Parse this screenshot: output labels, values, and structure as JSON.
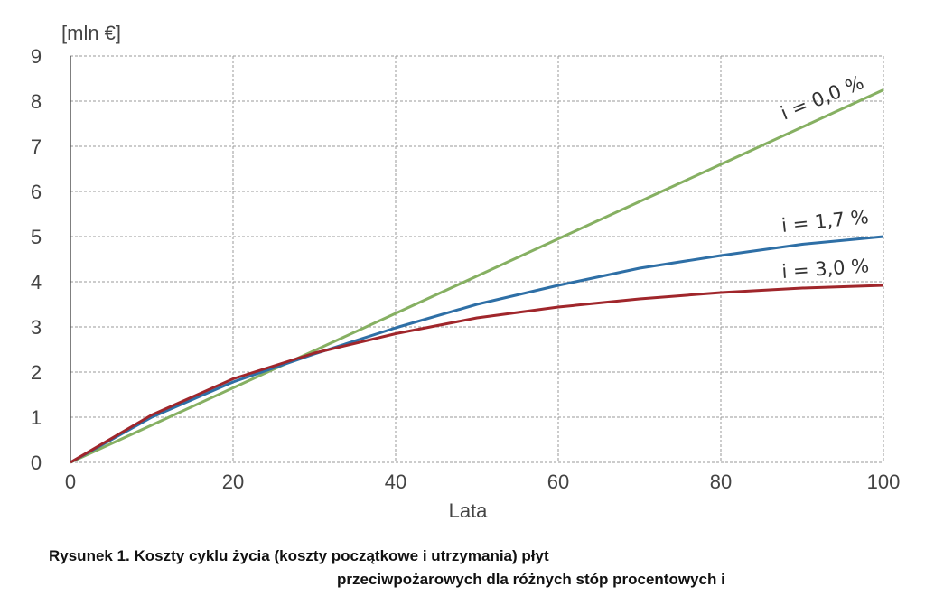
{
  "chart_data": {
    "type": "line",
    "ylabel": "[mln €]",
    "xlabel": "Lata",
    "xlim": [
      0,
      100
    ],
    "ylim": [
      0,
      9
    ],
    "xticks": [
      0,
      20,
      40,
      60,
      80,
      100
    ],
    "yticks": [
      0,
      1,
      2,
      3,
      4,
      5,
      6,
      7,
      8,
      9
    ],
    "grid": true,
    "x": [
      0,
      10,
      20,
      30,
      40,
      50,
      60,
      70,
      80,
      90,
      100
    ],
    "series": [
      {
        "name": "i = 0,0 %",
        "color": "#86b062",
        "values": [
          0,
          0.825,
          1.65,
          2.475,
          3.3,
          4.125,
          4.95,
          5.775,
          6.6,
          7.425,
          8.25
        ]
      },
      {
        "name": "i = 1,7 %",
        "color": "#2e6fa6",
        "values": [
          0,
          1.0,
          1.78,
          2.4,
          2.98,
          3.5,
          3.92,
          4.3,
          4.58,
          4.83,
          5.0
        ]
      },
      {
        "name": "i = 3,0 %",
        "color": "#a0262b",
        "values": [
          0,
          1.05,
          1.85,
          2.42,
          2.85,
          3.2,
          3.44,
          3.62,
          3.76,
          3.86,
          3.92
        ]
      }
    ]
  },
  "caption": {
    "line1": "Rysunek 1. Koszty cyklu życia (koszty początkowe i utrzymania) płyt",
    "line2": "przeciwpożarowych dla różnych stóp procentowych i"
  }
}
